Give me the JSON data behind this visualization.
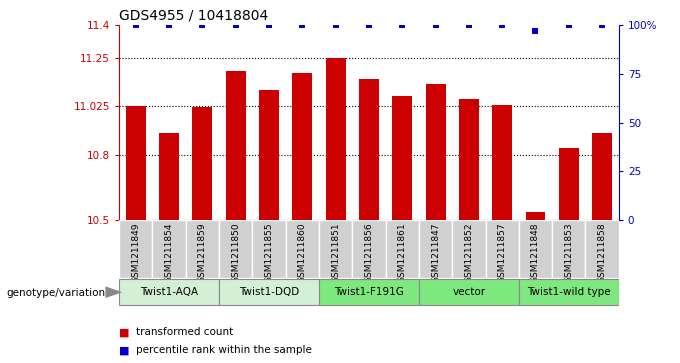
{
  "title": "GDS4955 / 10418804",
  "samples": [
    "GSM1211849",
    "GSM1211854",
    "GSM1211859",
    "GSM1211850",
    "GSM1211855",
    "GSM1211860",
    "GSM1211851",
    "GSM1211856",
    "GSM1211861",
    "GSM1211847",
    "GSM1211852",
    "GSM1211857",
    "GSM1211848",
    "GSM1211853",
    "GSM1211858"
  ],
  "transformed_counts": [
    11.025,
    10.9,
    11.02,
    11.19,
    11.1,
    11.18,
    11.25,
    11.15,
    11.075,
    11.13,
    11.06,
    11.03,
    10.535,
    10.83,
    10.9
  ],
  "percentile_ranks": [
    100,
    100,
    100,
    100,
    100,
    100,
    100,
    100,
    100,
    100,
    100,
    100,
    97,
    100,
    100
  ],
  "groups": [
    {
      "label": "Twist1-AQA",
      "indices": [
        0,
        1,
        2
      ],
      "color": "#d4f0d4"
    },
    {
      "label": "Twist1-DQD",
      "indices": [
        3,
        4,
        5
      ],
      "color": "#d4f0d4"
    },
    {
      "label": "Twist1-F191G",
      "indices": [
        6,
        7,
        8
      ],
      "color": "#7de87d"
    },
    {
      "label": "vector",
      "indices": [
        9,
        10,
        11
      ],
      "color": "#7de87d"
    },
    {
      "label": "Twist1-wild type",
      "indices": [
        12,
        13,
        14
      ],
      "color": "#7de87d"
    }
  ],
  "bar_color": "#cc0000",
  "dot_color": "#0000cc",
  "ylim_left": [
    10.5,
    11.4
  ],
  "ylim_right": [
    0,
    100
  ],
  "yticks_left": [
    10.5,
    10.8,
    11.025,
    11.25,
    11.4
  ],
  "ytick_labels_left": [
    "10.5",
    "10.8",
    "11.025",
    "11.25",
    "11.4"
  ],
  "yticks_right": [
    0,
    25,
    50,
    75,
    100
  ],
  "ytick_labels_right": [
    "0",
    "25",
    "50",
    "75",
    "100%"
  ],
  "dotted_lines": [
    10.8,
    11.025,
    11.25
  ],
  "bar_width": 0.6,
  "legend_items": [
    {
      "label": "transformed count",
      "color": "#cc0000"
    },
    {
      "label": "percentile rank within the sample",
      "color": "#0000cc"
    }
  ],
  "genotype_label": "genotype/variation",
  "sample_box_color": "#d0d0d0",
  "fig_width": 6.8,
  "fig_height": 3.63,
  "dpi": 100
}
